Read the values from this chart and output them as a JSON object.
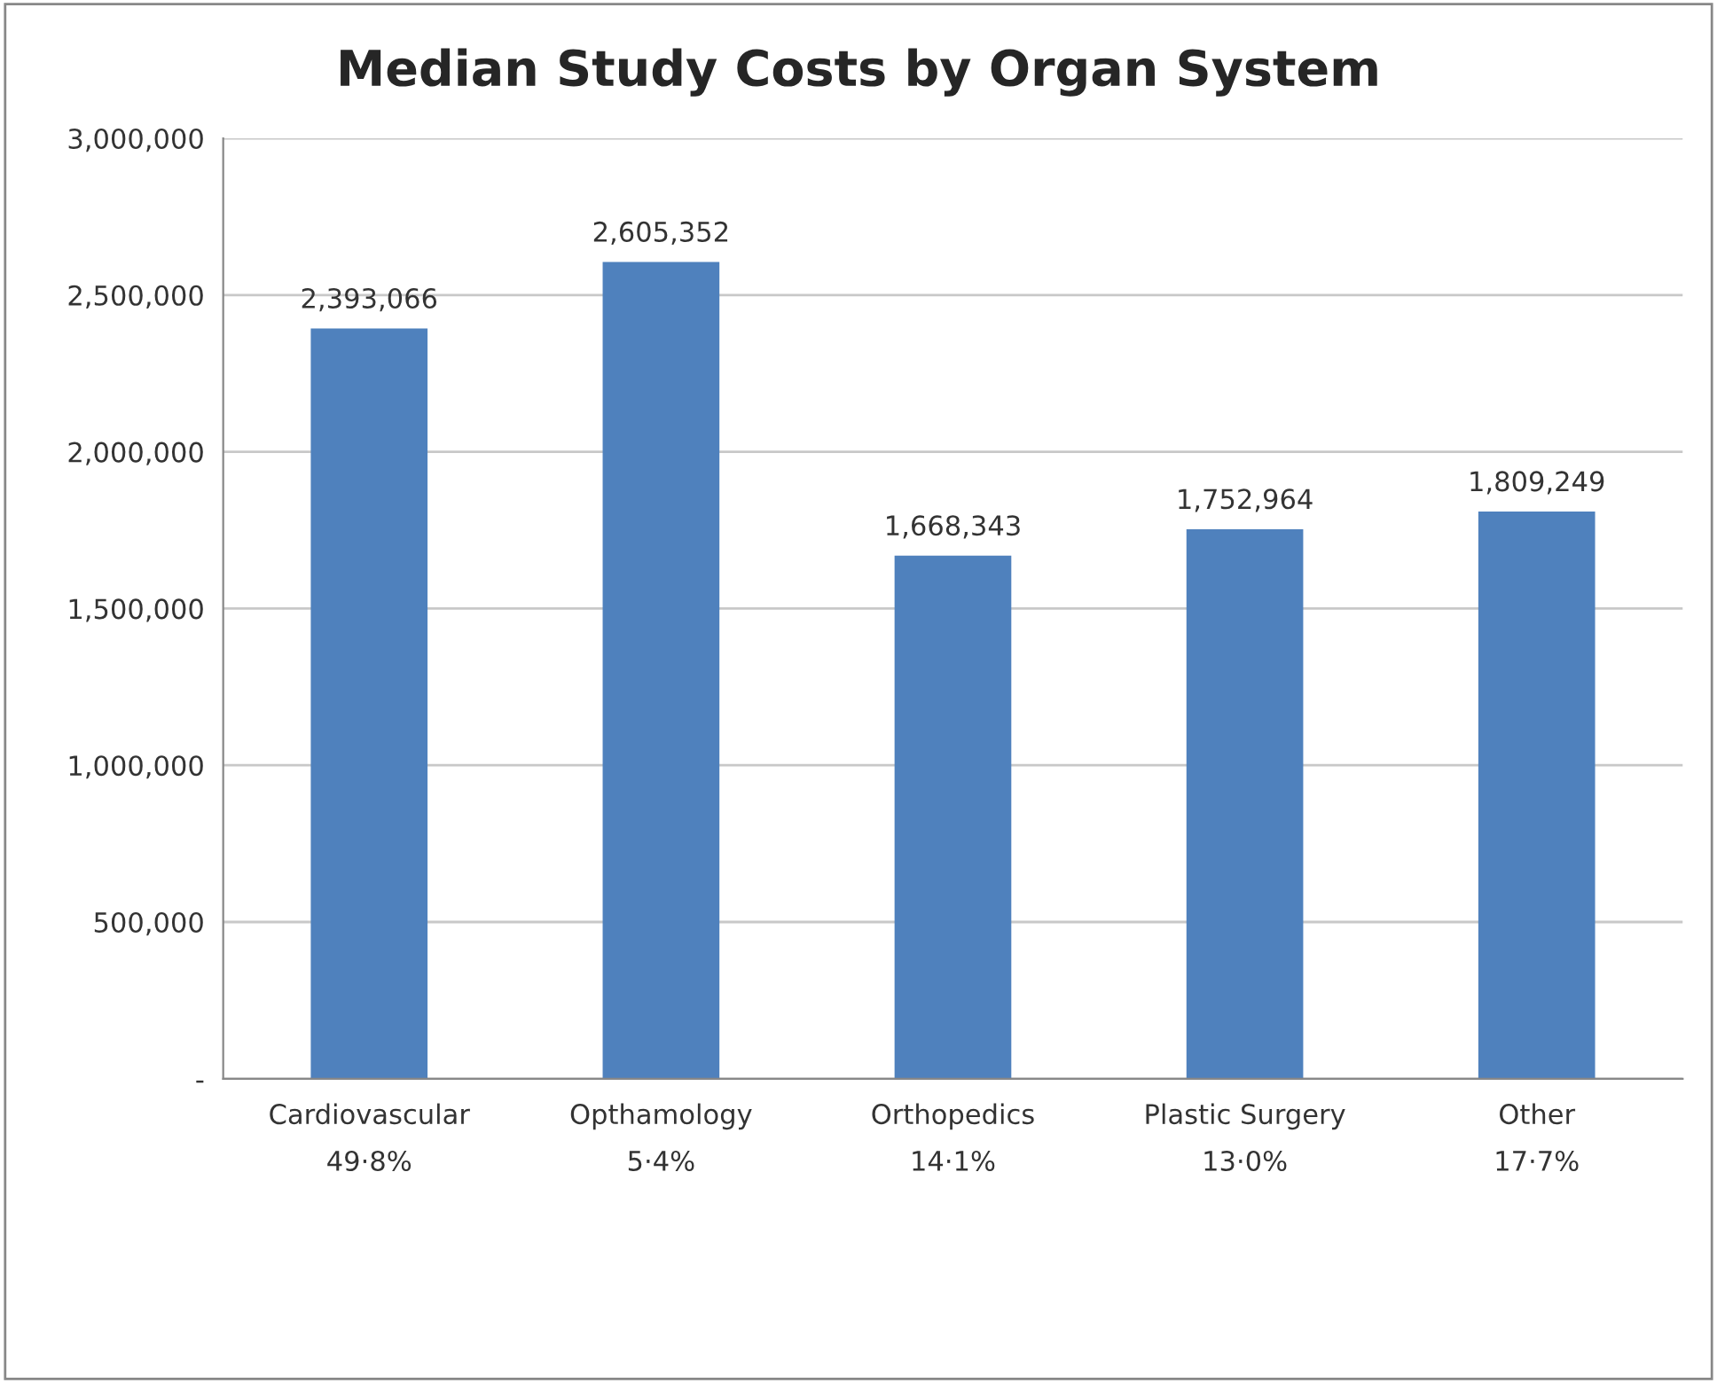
{
  "chart_data": {
    "type": "bar",
    "title": "Median Study Costs by Organ System",
    "categories": [
      "Cardiovascular\n49·8%",
      "Opthamology\n5·4%",
      "Orthopedics\n14·1%",
      "Plastic Surgery\n13·0%",
      "Other\n17·7%"
    ],
    "values": [
      2393066,
      2605352,
      1668343,
      1752964,
      1809249
    ],
    "value_labels": [
      "2,393,066",
      "2,605,352",
      "1,668,343",
      "1,752,964",
      "1,809,249"
    ],
    "color": "#4f81bd",
    "ylim": [
      0,
      3000000
    ],
    "yticks": [
      {
        "value": 0,
        "label": "-"
      },
      {
        "value": 500000,
        "label": "500,000"
      },
      {
        "value": 1000000,
        "label": "1,000,000"
      },
      {
        "value": 1500000,
        "label": "1,500,000"
      },
      {
        "value": 2000000,
        "label": "2,000,000"
      },
      {
        "value": 2500000,
        "label": "2,500,000"
      },
      {
        "value": 3000000,
        "label": "3,000,000"
      }
    ],
    "grid": "y",
    "legend": false
  }
}
